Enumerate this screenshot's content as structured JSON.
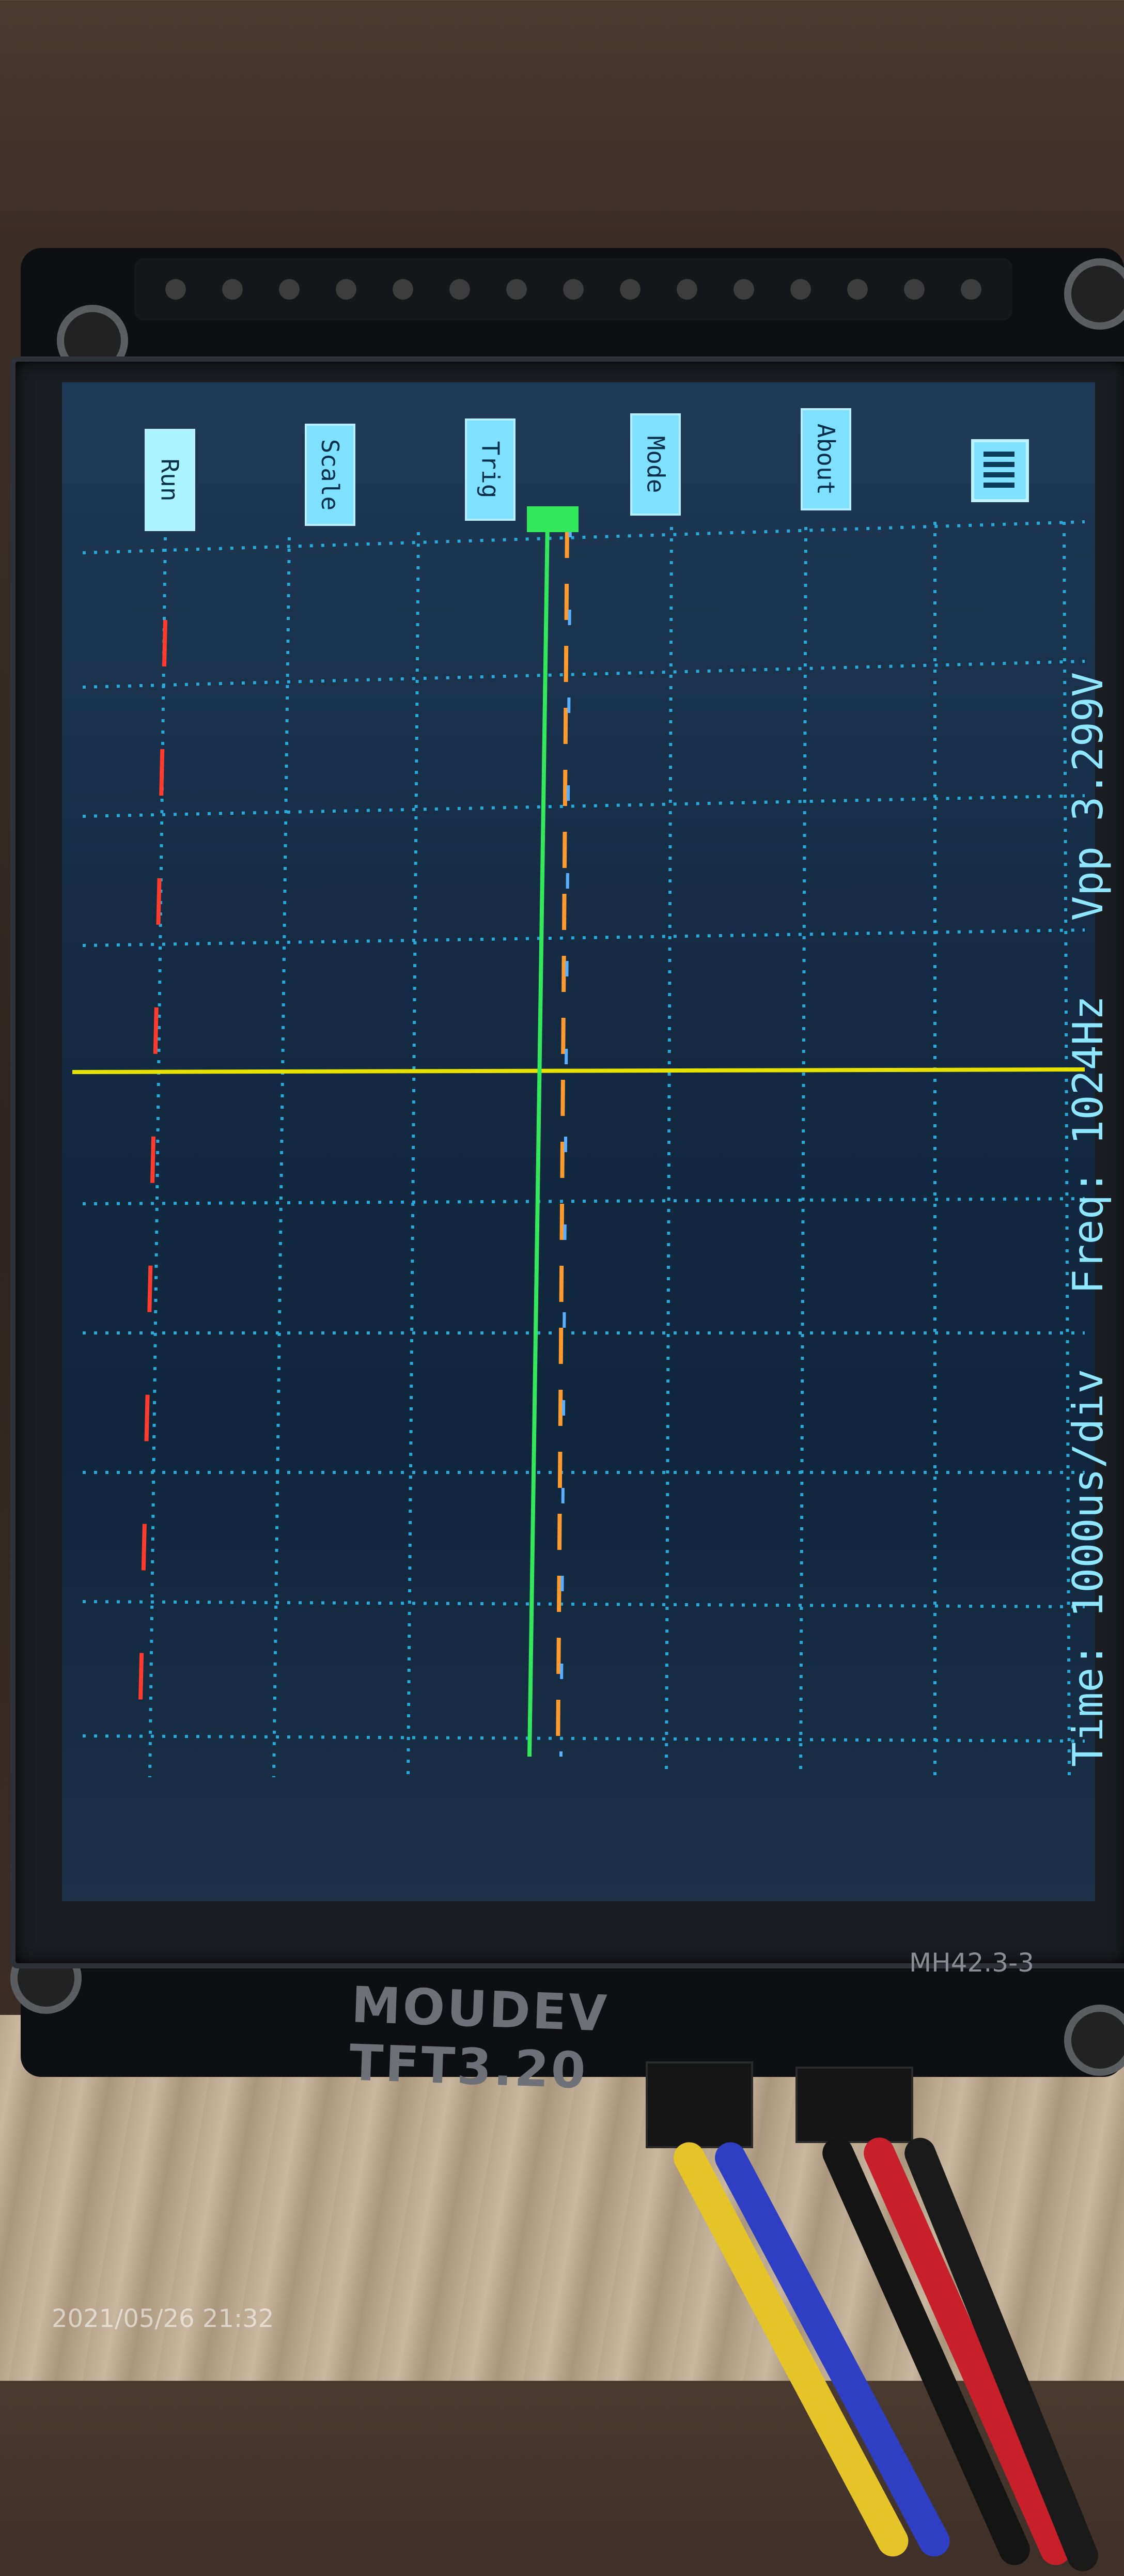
{
  "menu": {
    "items": [
      {
        "label": "Run",
        "active": true
      },
      {
        "label": "Scale",
        "active": false
      },
      {
        "label": "Trig",
        "active": false
      },
      {
        "label": "Mode",
        "active": false
      },
      {
        "label": "About",
        "active": false
      }
    ]
  },
  "status": {
    "time_label": "Time:",
    "time_value": "1000us/div",
    "freq_label": "Freq:",
    "freq_value": "1024Hz",
    "vpp_label": "Vpp",
    "vpp_value": "3.299V"
  },
  "board": {
    "silkscreen": "MOUDEV TFT3.20",
    "version": "MH42.3-3"
  },
  "photo": {
    "timestamp": "2021/05/26 21:32"
  },
  "colors": {
    "grid": "#2aa8d8",
    "trigger_line": "#e7e100",
    "channel_green": "#33e85a",
    "channel_red": "#ff3b2e",
    "channel_orange": "#ff9a2e",
    "button_bg": "#7fe0ff"
  }
}
